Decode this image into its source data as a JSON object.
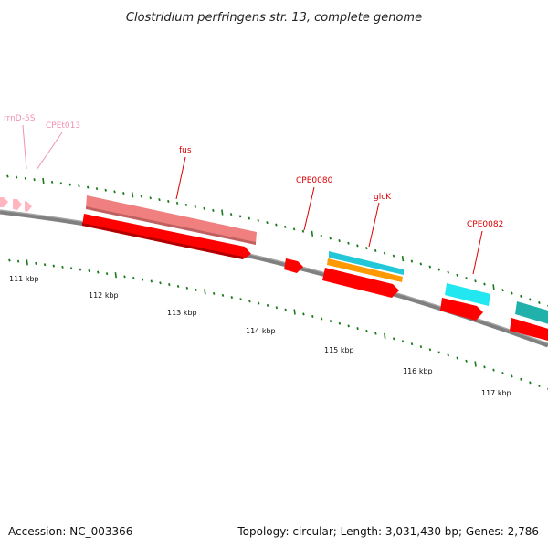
{
  "title": "Clostridium perfringens str. 13, complete genome",
  "footer": {
    "accession": "Accession: NC_003366",
    "info": "Topology: circular; Length: 3,031,430 bp; Genes: 2,786"
  },
  "colors": {
    "backbone": "#808080",
    "tick": "#1a7a1a",
    "cds": "#ff0000",
    "gene": "#f08080",
    "rrna": "#ffb6c1",
    "cyan": "#22d8e8",
    "teal": "#20b2aa",
    "orange": "#ff9900",
    "label_red": "#dd0000",
    "label_pink": "#f090b0"
  },
  "scale": {
    "unit": "kbp",
    "labels": [
      "111 kbp",
      "112 kbp",
      "113 kbp",
      "114 kbp",
      "115 kbp",
      "116 kbp",
      "117 kbp"
    ]
  },
  "gene_labels": [
    {
      "id": "rrnD-5S",
      "text": "rrnD-5S",
      "color": "pink"
    },
    {
      "id": "CPEt013",
      "text": "CPEt013",
      "color": "pink"
    },
    {
      "id": "fus",
      "text": "fus",
      "color": "red"
    },
    {
      "id": "CPE0080",
      "text": "CPE0080",
      "color": "red"
    },
    {
      "id": "glcK",
      "text": "glcK",
      "color": "red"
    },
    {
      "id": "CPE0082",
      "text": "CPE0082",
      "color": "red"
    }
  ]
}
